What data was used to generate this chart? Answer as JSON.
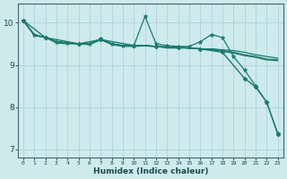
{
  "xlabel": "Humidex (Indice chaleur)",
  "background_color": "#ceeaec",
  "grid_color": "#aed4d8",
  "line_color": "#1a7a6e",
  "xlim": [
    -0.5,
    23.5
  ],
  "ylim": [
    6.8,
    10.45
  ],
  "yticks": [
    7,
    8,
    9,
    10
  ],
  "xticks": [
    0,
    1,
    2,
    3,
    4,
    5,
    6,
    7,
    8,
    9,
    10,
    11,
    12,
    13,
    14,
    15,
    16,
    17,
    18,
    19,
    20,
    21,
    22,
    23
  ],
  "series": [
    {
      "x": [
        0,
        1,
        2,
        3,
        4,
        5,
        6,
        7,
        8,
        9,
        10,
        11,
        12,
        13,
        14,
        15,
        16,
        17,
        18,
        19,
        20,
        21,
        22,
        23
      ],
      "y": [
        10.05,
        9.72,
        9.65,
        9.55,
        9.52,
        9.5,
        9.5,
        9.6,
        9.5,
        9.46,
        9.46,
        9.46,
        9.44,
        9.42,
        9.42,
        9.4,
        9.38,
        9.38,
        9.36,
        9.34,
        9.3,
        9.24,
        9.2,
        9.16
      ],
      "marker": null,
      "linewidth": 0.9
    },
    {
      "x": [
        0,
        1,
        2,
        3,
        4,
        5,
        6,
        7,
        8,
        9,
        10,
        11,
        12,
        13,
        14,
        15,
        16,
        17,
        18,
        19,
        20,
        21,
        22,
        23
      ],
      "y": [
        10.05,
        9.72,
        9.65,
        9.55,
        9.52,
        9.5,
        9.5,
        9.62,
        9.5,
        9.46,
        9.46,
        10.15,
        9.5,
        9.46,
        9.44,
        9.44,
        9.55,
        9.72,
        9.65,
        9.2,
        8.88,
        8.5,
        8.12,
        7.38
      ],
      "marker": "*",
      "markersize": 3.5,
      "linewidth": 0.9
    },
    {
      "x": [
        0,
        1,
        2,
        3,
        4,
        5,
        6,
        7,
        8,
        9,
        10,
        11,
        12,
        13,
        14,
        15,
        16,
        17,
        18,
        19,
        20,
        21,
        22,
        23
      ],
      "y": [
        10.05,
        9.7,
        9.65,
        9.55,
        9.52,
        9.5,
        9.5,
        9.6,
        9.5,
        9.46,
        9.46,
        9.46,
        9.44,
        9.42,
        9.42,
        9.4,
        9.38,
        9.38,
        9.34,
        9.3,
        9.24,
        9.2,
        9.14,
        9.12
      ],
      "marker": null,
      "linewidth": 0.9
    },
    {
      "x": [
        0,
        1,
        2,
        3,
        4,
        5,
        6,
        7,
        8,
        9,
        10,
        11,
        12,
        13,
        14,
        15,
        16,
        17,
        18,
        19,
        20,
        21,
        22,
        23
      ],
      "y": [
        10.05,
        9.7,
        9.65,
        9.52,
        9.5,
        9.5,
        9.48,
        9.6,
        9.48,
        9.44,
        9.44,
        9.45,
        9.44,
        9.4,
        9.4,
        9.4,
        9.38,
        9.36,
        9.32,
        9.28,
        9.22,
        9.18,
        9.12,
        9.1
      ],
      "marker": null,
      "markersize": 3.0,
      "linewidth": 0.9
    },
    {
      "x": [
        0,
        2,
        5,
        7,
        10,
        12,
        14,
        16,
        18,
        20,
        21,
        22,
        23
      ],
      "y": [
        10.05,
        9.65,
        9.5,
        9.6,
        9.46,
        9.44,
        9.42,
        9.38,
        9.3,
        8.68,
        8.48,
        8.12,
        7.36
      ],
      "marker": "D",
      "markersize": 2.5,
      "linewidth": 1.0
    }
  ]
}
